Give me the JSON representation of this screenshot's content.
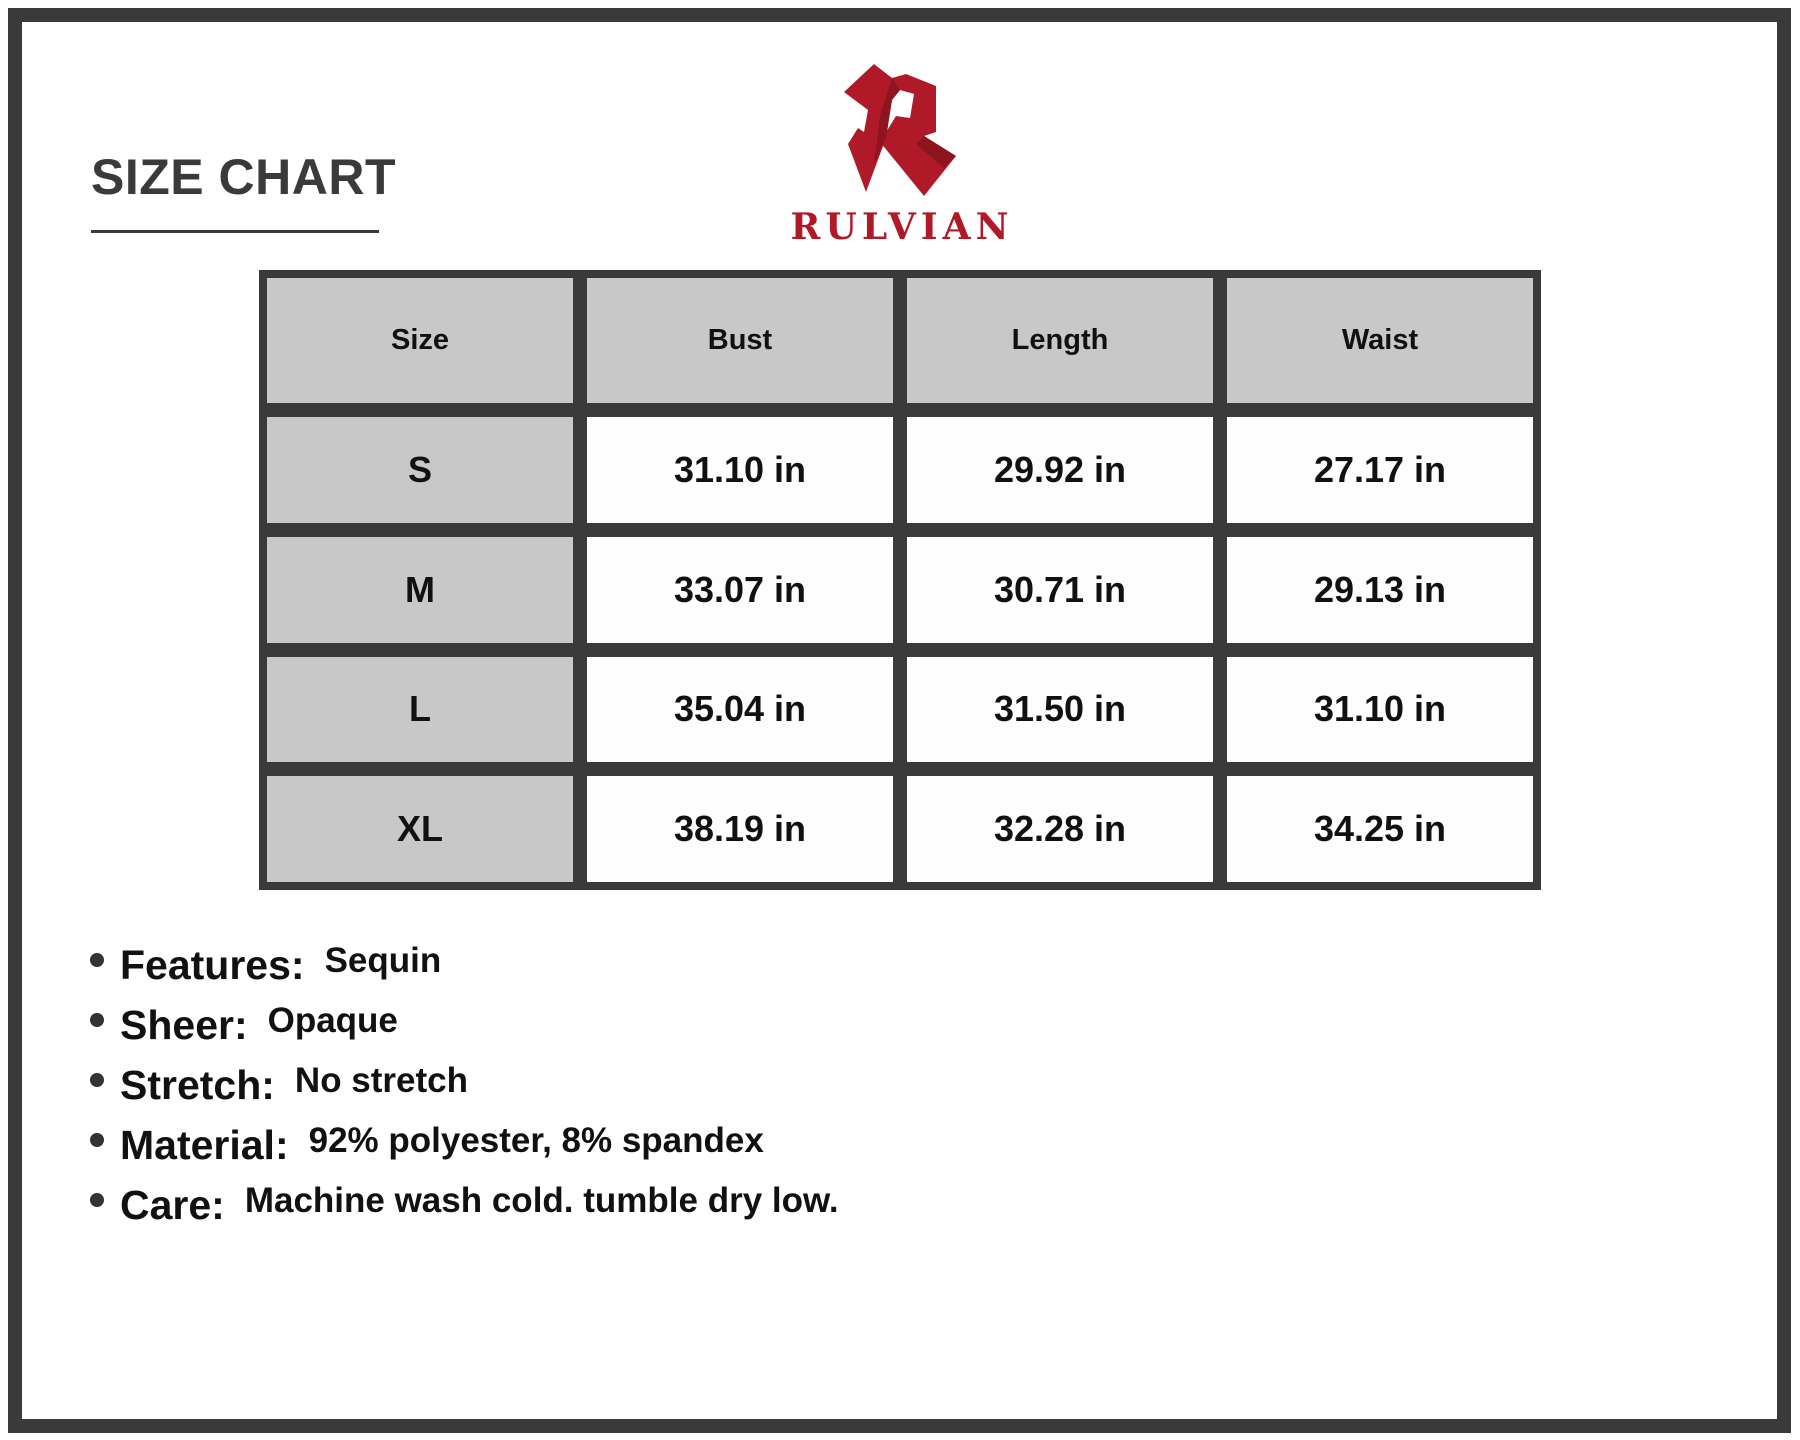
{
  "title": "SIZE CHART",
  "brand": {
    "name": "RULVIAN",
    "color": "#b01a28"
  },
  "table": {
    "headers": [
      "Size",
      "Bust",
      "Length",
      "Waist"
    ],
    "rows": [
      [
        "S",
        "31.10 in",
        "29.92 in",
        "27.17 in"
      ],
      [
        "M",
        "33.07 in",
        "30.71 in",
        "29.13 in"
      ],
      [
        "L",
        "35.04 in",
        "31.50 in",
        "31.10 in"
      ],
      [
        "XL",
        "38.19 in",
        "32.28 in",
        "34.25 in"
      ]
    ]
  },
  "specs": [
    {
      "label": "Features:",
      "value": "Sequin"
    },
    {
      "label": "Sheer:",
      "value": "Opaque"
    },
    {
      "label": "Stretch:",
      "value": "No stretch"
    },
    {
      "label": "Material:",
      "value": "92% polyester, 8% spandex"
    },
    {
      "label": "Care:",
      "value": "Machine wash cold. tumble dry low."
    }
  ]
}
